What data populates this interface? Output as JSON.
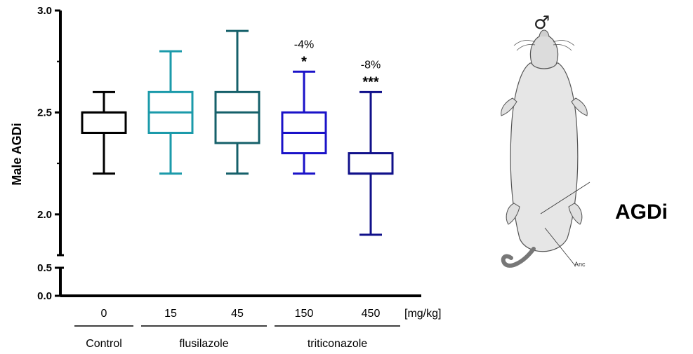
{
  "chart_data": {
    "type": "box",
    "ylabel": "Male AGDi",
    "unit_label": "[mg/kg]",
    "ylim_upper": [
      1.8,
      3.0
    ],
    "ylim_lower": [
      0.0,
      0.5
    ],
    "yticks_upper": [
      "2.0",
      "2.5",
      "3.0"
    ],
    "yticks_lower": [
      "0.0",
      "0.5"
    ],
    "groups": [
      {
        "name": "Control",
        "doses": [
          "0"
        ]
      },
      {
        "name": "flusilazole",
        "doses": [
          "15",
          "45"
        ]
      },
      {
        "name": "triticonazole",
        "doses": [
          "150",
          "450"
        ]
      }
    ],
    "boxes": [
      {
        "dose": "0",
        "min": 2.2,
        "q1": 2.4,
        "median": 2.5,
        "q3": 2.5,
        "max": 2.6,
        "color": "#000000",
        "annotation": "",
        "significance": ""
      },
      {
        "dose": "15",
        "min": 2.2,
        "q1": 2.4,
        "median": 2.5,
        "q3": 2.6,
        "max": 2.8,
        "color": "#1b9aaa",
        "annotation": "",
        "significance": ""
      },
      {
        "dose": "45",
        "min": 2.2,
        "q1": 2.35,
        "median": 2.5,
        "q3": 2.6,
        "max": 2.9,
        "color": "#15606a",
        "annotation": "",
        "significance": ""
      },
      {
        "dose": "150",
        "min": 2.2,
        "q1": 2.3,
        "median": 2.4,
        "q3": 2.5,
        "max": 2.7,
        "color": "#1a12c8",
        "annotation": "-4%",
        "significance": "*"
      },
      {
        "dose": "450",
        "min": 1.9,
        "q1": 2.2,
        "median": 2.2,
        "q3": 2.3,
        "max": 2.6,
        "color": "#10108a",
        "annotation": "-8%",
        "significance": "***"
      }
    ]
  },
  "illustration": {
    "label": "AGDi",
    "symbol": "♂",
    "callout_text": "Anc"
  }
}
